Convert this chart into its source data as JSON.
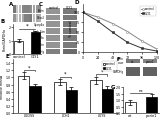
{
  "bar_B_categories": [
    "control",
    "GLY1"
  ],
  "bar_B_values": [
    1.0,
    1.6
  ],
  "bar_B_errors": [
    0.1,
    0.13
  ],
  "bar_B_colors": [
    "white",
    "black"
  ],
  "bar_B_ylabel": "Porin/GAPDHa",
  "bar_B_ylim": [
    0,
    2.2
  ],
  "line_D_x": [
    0,
    24,
    48,
    72,
    96,
    120
  ],
  "line_D_control": [
    100,
    88,
    72,
    52,
    28,
    8
  ],
  "line_D_gly1": [
    100,
    78,
    50,
    25,
    10,
    3
  ],
  "line_D_ylabel": "% survival",
  "line_D_xlabel": "hour",
  "line_D_legend": [
    "control",
    "GLY1"
  ],
  "line_D_ylim": [
    0,
    120
  ],
  "line_D_xlim": [
    0,
    120
  ],
  "line_D_xticks": [
    0,
    24,
    48,
    72,
    96,
    120
  ],
  "line_D_yticks": [
    0,
    25,
    50,
    75,
    100
  ],
  "bar_E_groups": [
    "LGDSS",
    "LCH1",
    "LGYS"
  ],
  "bar_E_control_vals": [
    1.05,
    0.88,
    0.92
  ],
  "bar_E_gly1_vals": [
    0.75,
    0.65,
    0.68
  ],
  "bar_E_control_err": [
    0.09,
    0.08,
    0.1
  ],
  "bar_E_gly1_err": [
    0.07,
    0.08,
    0.09
  ],
  "bar_E_ylabel": "Relative mRNA",
  "bar_E_ylim": [
    0,
    1.5
  ],
  "bar_G_categories": [
    "wt",
    "porin1"
  ],
  "bar_G_values": [
    0.85,
    1.25
  ],
  "bar_G_errors": [
    0.18,
    0.22
  ],
  "bar_G_colors": [
    "white",
    "black"
  ],
  "bar_G_ylabel": "survival",
  "bar_G_ylim": [
    0,
    2.0
  ],
  "wb_labels_C": [
    "Porin",
    "Vdac2",
    "Cparp4a",
    "Fech Sim",
    "Vdac3a",
    "porin",
    "GAPDHg"
  ],
  "wb_labels_F": [
    "porin",
    "GAPDHg"
  ],
  "wb_categories_F": [
    "wt",
    "porin1"
  ],
  "wb_categories_C": [
    "control",
    "GLY1"
  ],
  "line_control_color": "#888888",
  "line_gly1_color": "#333333",
  "background": "#ffffff",
  "panel_labels": [
    "A",
    "B",
    "C",
    "D",
    "E",
    "F",
    "G"
  ]
}
